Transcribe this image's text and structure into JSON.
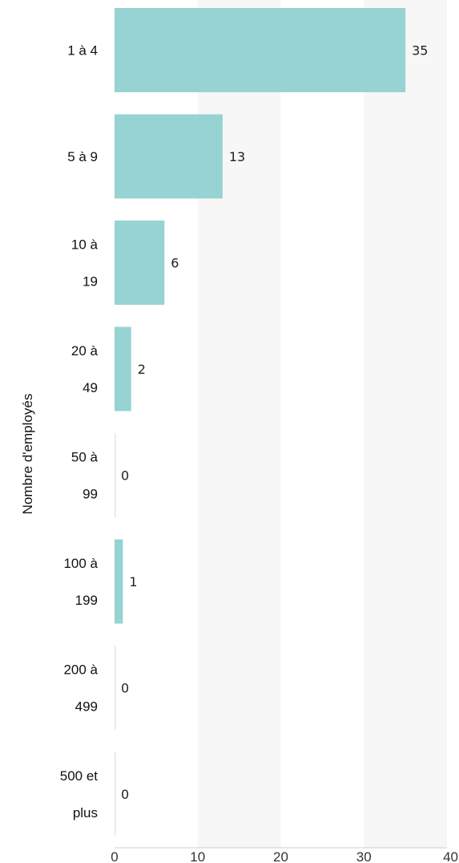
{
  "chart_data": {
    "type": "bar",
    "orientation": "horizontal",
    "categories": [
      "1 à 4",
      "5 à 9",
      "10 à 19",
      "20 à 49",
      "50 à 99",
      "100 à 199",
      "200 à 499",
      "500 et plus"
    ],
    "category_lines": [
      [
        "1 à 4"
      ],
      [
        "5 à 9"
      ],
      [
        "10 à",
        "19"
      ],
      [
        "20 à",
        "49"
      ],
      [
        "50 à",
        "99"
      ],
      [
        "100 à",
        "199"
      ],
      [
        "200 à",
        "499"
      ],
      [
        "500 et",
        "plus"
      ]
    ],
    "values": [
      35,
      13,
      6,
      2,
      0,
      1,
      0,
      0
    ],
    "data_labels": [
      "35",
      "13",
      "6",
      "2",
      "0",
      "1",
      "0",
      "0"
    ],
    "title": "",
    "xlabel": "",
    "ylabel": "Nombre d'employés",
    "xlim": [
      0,
      40
    ],
    "xticks": [
      0,
      10,
      20,
      30,
      40
    ],
    "xtick_labels": [
      "0",
      "10",
      "20",
      "30",
      "40"
    ],
    "grid": "alternating vertical bands",
    "bar_color": "#96d3d2",
    "band_color": "#f7f7f7",
    "axis_color": "#cccccc"
  }
}
